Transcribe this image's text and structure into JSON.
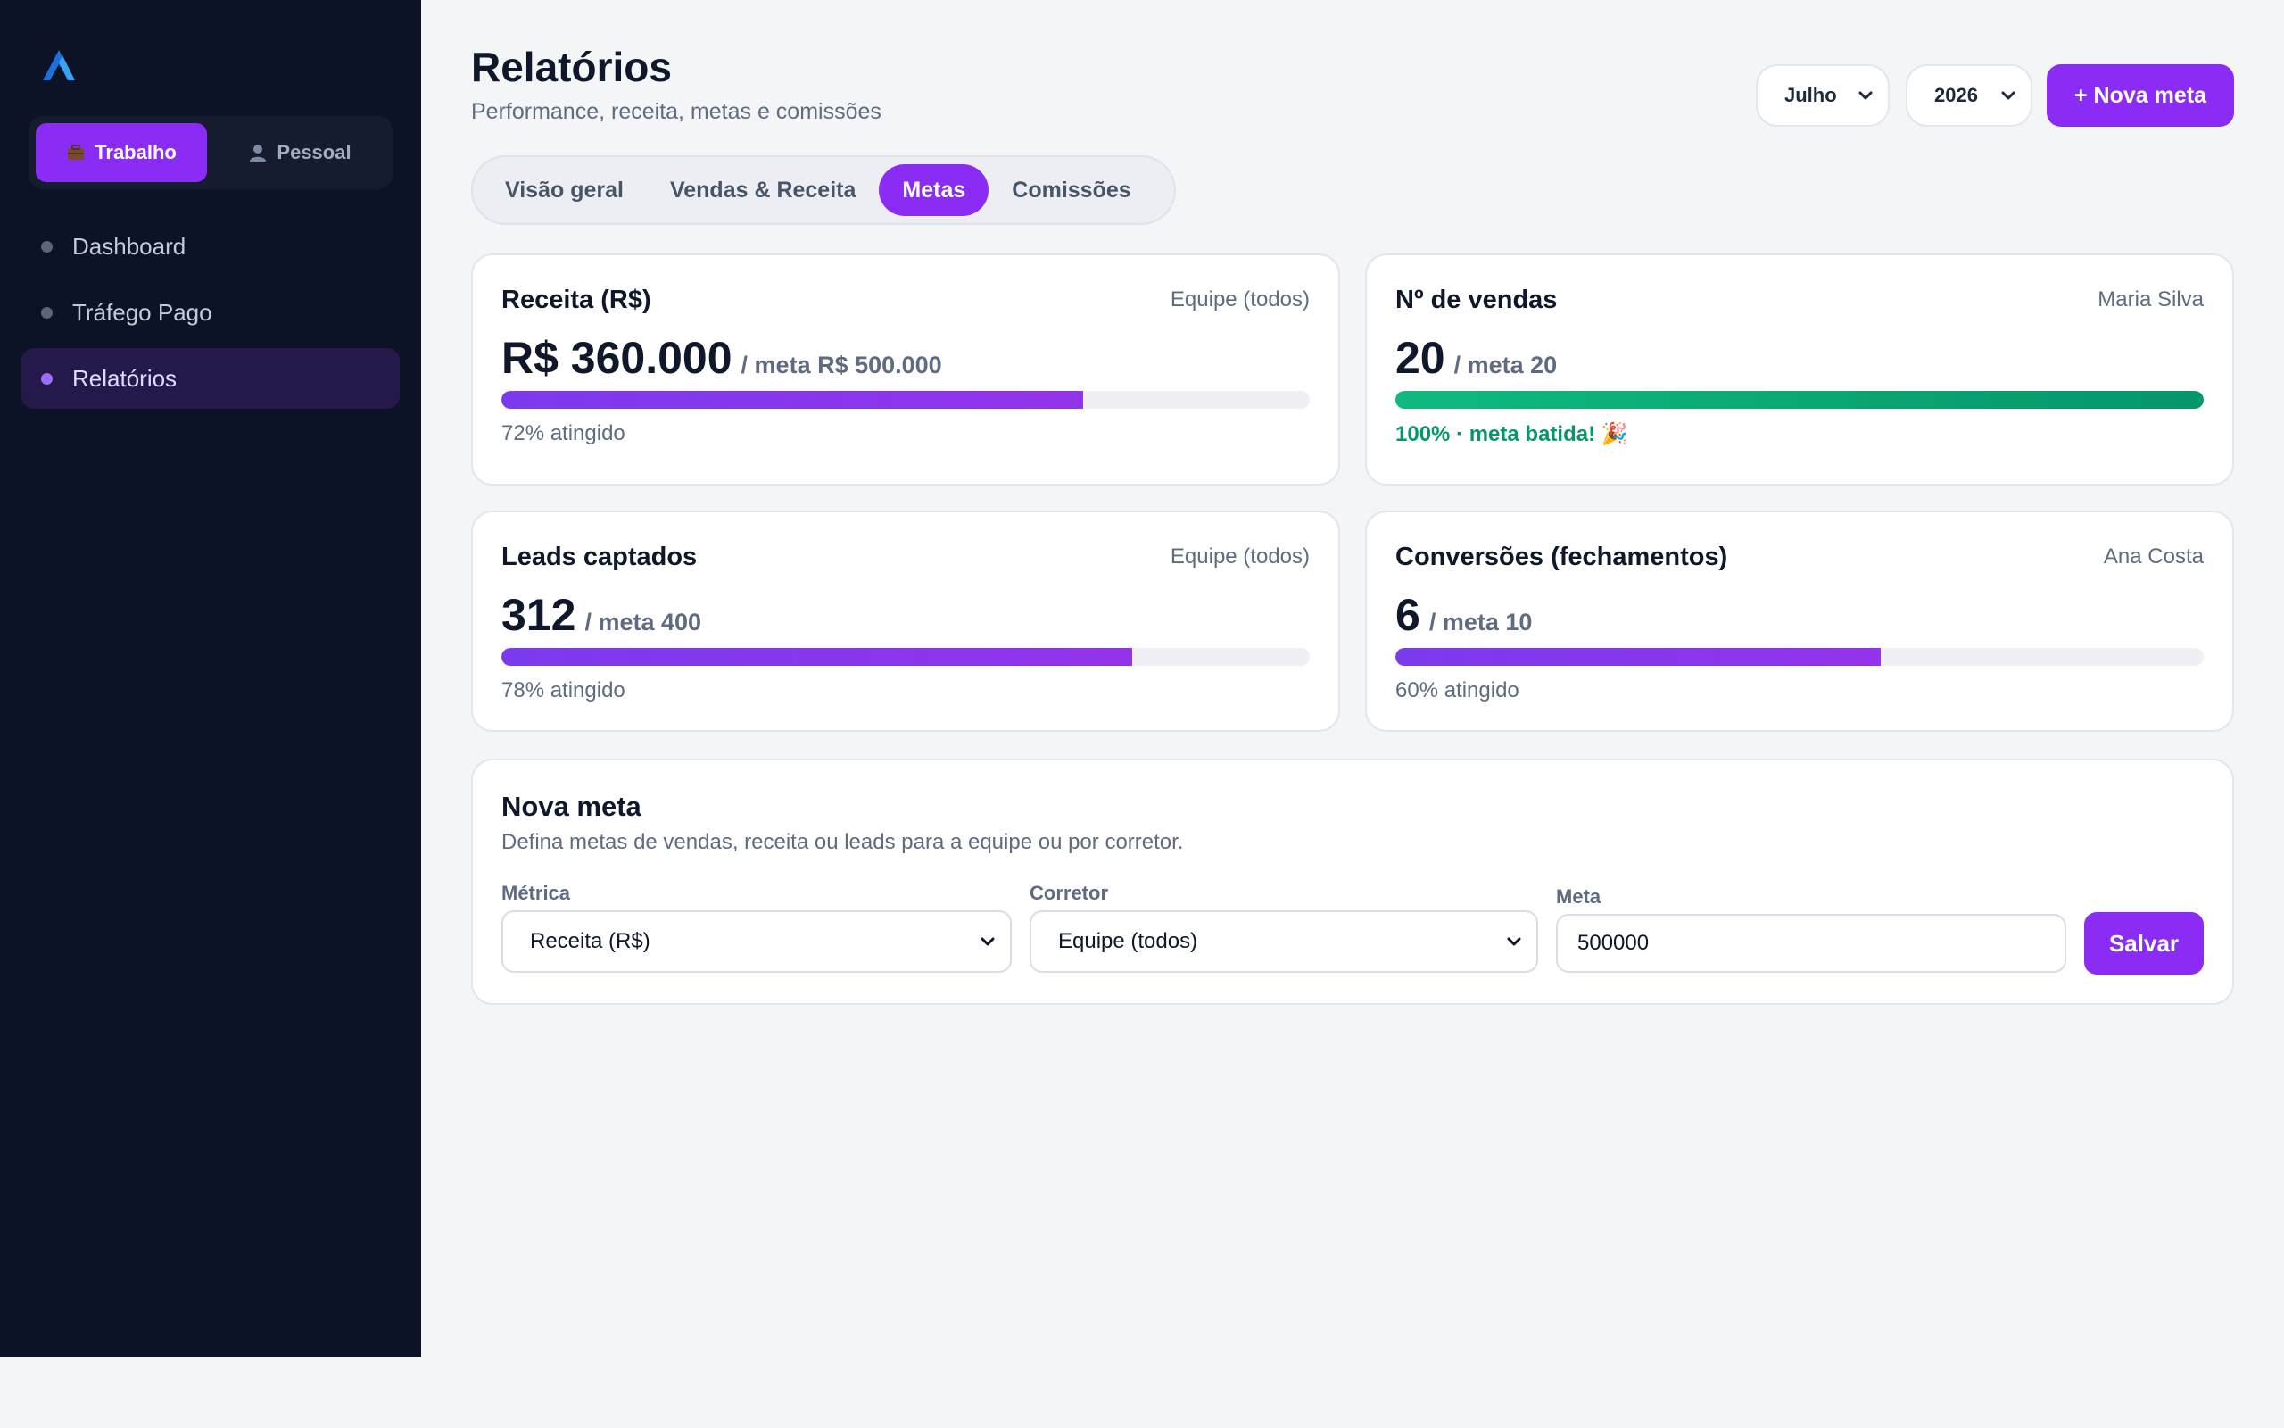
{
  "sidebar": {
    "logo_icon": "logo-mark",
    "context_switch": [
      {
        "label": "Trabalho",
        "icon": "briefcase-icon",
        "active": true
      },
      {
        "label": "Pessoal",
        "icon": "person-icon",
        "active": false
      }
    ],
    "nav": [
      {
        "label": "Dashboard",
        "active": false
      },
      {
        "label": "Tráfego Pago",
        "active": false
      },
      {
        "label": "Relatórios",
        "active": true
      }
    ]
  },
  "header": {
    "title": "Relatórios",
    "subtitle": "Performance, receita, metas e comissões",
    "month": "Julho",
    "year": "2026",
    "new_goal_label": "+ Nova meta"
  },
  "tabs": [
    {
      "label": "Visão geral",
      "active": false
    },
    {
      "label": "Vendas & Receita",
      "active": false
    },
    {
      "label": "Metas",
      "active": true
    },
    {
      "label": "Comissões",
      "active": false
    }
  ],
  "goals": [
    {
      "title": "Receita (R$)",
      "owner": "Equipe (todos)",
      "value": "R$ 360.000",
      "meta": "/ meta R$ 500.000",
      "progress": 0.72,
      "status": "72% atingido",
      "achieved": false
    },
    {
      "title": "Nº de vendas",
      "owner": "Maria Silva",
      "value": "20",
      "meta": "/ meta 20",
      "progress": 1.0,
      "status": "100% · meta batida! 🎉",
      "achieved": true
    },
    {
      "title": "Leads captados",
      "owner": "Equipe (todos)",
      "value": "312",
      "meta": "/ meta 400",
      "progress": 0.78,
      "status": "78% atingido",
      "achieved": false
    },
    {
      "title": "Conversões (fechamentos)",
      "owner": "Ana Costa",
      "value": "6",
      "meta": "/ meta 10",
      "progress": 0.6,
      "status": "60% atingido",
      "achieved": false
    }
  ],
  "form": {
    "title": "Nova meta",
    "description": "Defina metas de vendas, receita ou leads para a equipe ou por corretor.",
    "metric_label": "Métrica",
    "metric_value": "Receita (R$)",
    "broker_label": "Corretor",
    "broker_value": "Equipe (todos)",
    "goal_label": "Meta",
    "goal_value": "500000",
    "save_label": "Salvar"
  },
  "colors": {
    "accent": "#8b2cf5",
    "success": "#059669",
    "sidebar_bg": "#0d1326"
  }
}
